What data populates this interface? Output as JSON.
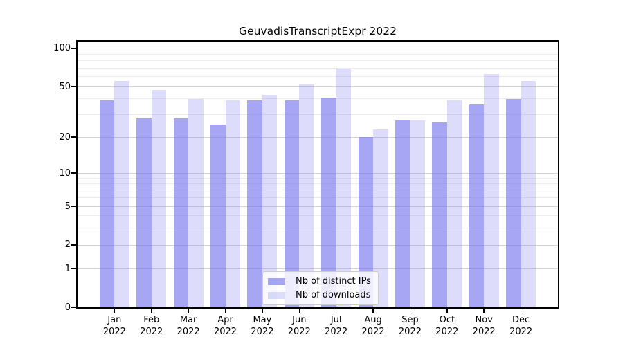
{
  "chart_data": {
    "type": "bar",
    "title": "GeuvadisTranscriptExpr 2022",
    "xlabel": "",
    "ylabel": "",
    "categories": [
      "Jan",
      "Feb",
      "Mar",
      "Apr",
      "May",
      "Jun",
      "Jul",
      "Aug",
      "Sep",
      "Oct",
      "Nov",
      "Dec"
    ],
    "year": "2022",
    "series": [
      {
        "name": "Nb of distinct IPs",
        "values": [
          39,
          28,
          28,
          25,
          39,
          39,
          41,
          20,
          27,
          26,
          36,
          40
        ]
      },
      {
        "name": "Nb of downloads",
        "values": [
          55,
          47,
          40,
          39,
          43,
          52,
          69,
          23,
          27,
          39,
          63,
          55
        ]
      }
    ],
    "yscale": "symlog",
    "y_ticks": [
      0,
      1,
      2,
      5,
      10,
      20,
      50,
      100
    ],
    "y_minor_ticks": [
      3,
      4,
      6,
      7,
      8,
      9,
      30,
      40,
      60,
      70,
      80,
      90
    ],
    "ylim": [
      0,
      113
    ],
    "grid": true,
    "legend_position": "lower center"
  },
  "colors": {
    "series1_fill": "rgba(119,119,238,0.65)",
    "series2_fill": "rgba(119,119,238,0.25)",
    "grid_major": "#d4d4d4",
    "grid_minor": "#ececec",
    "axis": "#000000",
    "text": "#000000",
    "legend_border": "#cccccc",
    "legend_bg": "rgba(255,255,255,0.8)"
  }
}
